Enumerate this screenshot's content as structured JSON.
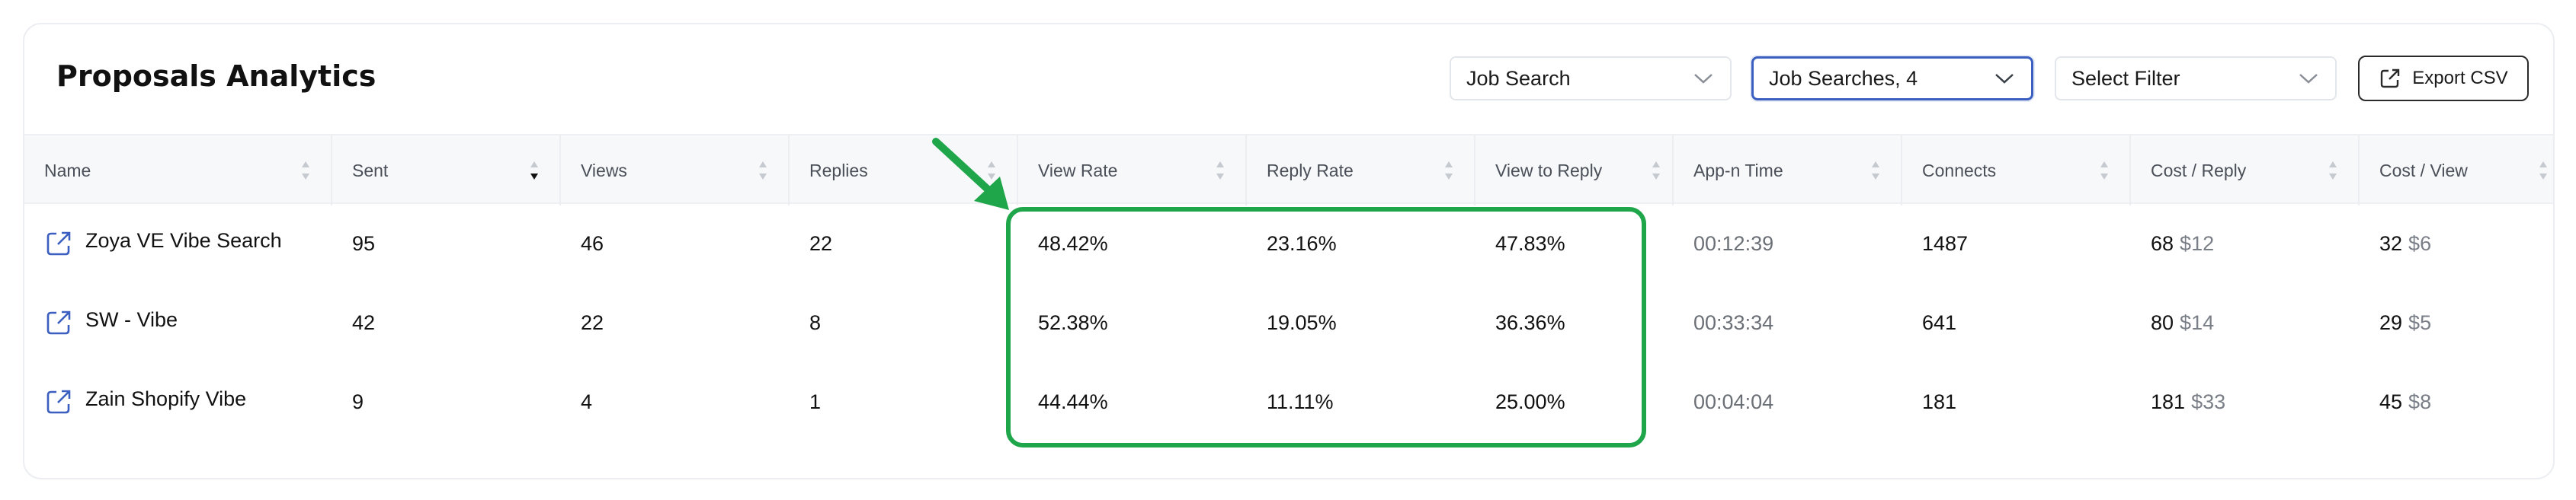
{
  "title": "Proposals Analytics",
  "filters": {
    "job_search": "Job Search",
    "job_searches": "Job Searches, 4",
    "select_filter": "Select Filter",
    "export_label": "Export CSV"
  },
  "columns": [
    "Name",
    "Sent",
    "Views",
    "Replies",
    "View Rate",
    "Reply Rate",
    "View to Reply",
    "App-n Time",
    "Connects",
    "Cost / Reply",
    "Cost / View"
  ],
  "rows": [
    {
      "name": "Zoya VE Vibe Search",
      "sent": "95",
      "views": "46",
      "replies": "22",
      "view_rate": "48.42%",
      "reply_rate": "23.16%",
      "view_to_reply": "47.83%",
      "app_time": "00:12:39",
      "connects": "1487",
      "cost_reply": "68",
      "cost_reply_usd": "$12",
      "cost_view": "32",
      "cost_view_usd": "$6"
    },
    {
      "name": "SW - Vibe",
      "sent": "42",
      "views": "22",
      "replies": "8",
      "view_rate": "52.38%",
      "reply_rate": "19.05%",
      "view_to_reply": "36.36%",
      "app_time": "00:33:34",
      "connects": "641",
      "cost_reply": "80",
      "cost_reply_usd": "$14",
      "cost_view": "29",
      "cost_view_usd": "$5"
    },
    {
      "name": "Zain Shopify Vibe",
      "sent": "9",
      "views": "4",
      "replies": "1",
      "view_rate": "44.44%",
      "reply_rate": "11.11%",
      "view_to_reply": "25.00%",
      "app_time": "00:04:04",
      "connects": "181",
      "cost_reply": "181",
      "cost_reply_usd": "$33",
      "cost_view": "45",
      "cost_view_usd": "$8"
    }
  ],
  "icons": {
    "link": "external-link-icon",
    "export": "export-icon",
    "chevron": "chevron-down-icon",
    "sort": "sort-icon"
  },
  "colors": {
    "highlight": "#1fa64a",
    "active_border": "#3b5fc0",
    "link_icon": "#3b5fc0"
  }
}
